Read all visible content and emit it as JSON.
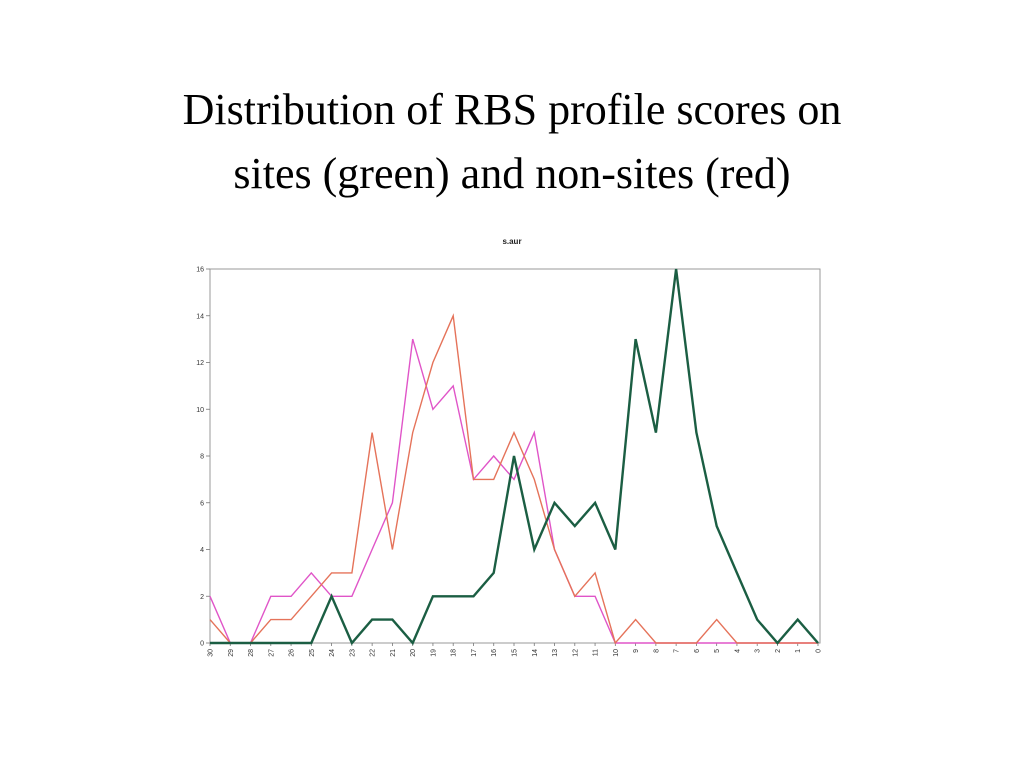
{
  "slide": {
    "title_line1": "Distribution of RBS profile scores on",
    "title_line2": "sites (green) and non-sites (red)"
  },
  "chart_data": {
    "type": "line",
    "title": "s.aur",
    "xlabel": "",
    "ylabel": "",
    "x": [
      30,
      29,
      28,
      27,
      26,
      25,
      24,
      23,
      22,
      21,
      20,
      19,
      18,
      17,
      16,
      15,
      14,
      13,
      12,
      11,
      10,
      9,
      8,
      7,
      6,
      5,
      4,
      3,
      2,
      1,
      0
    ],
    "ylim": [
      0,
      16
    ],
    "yticks": [
      0,
      2,
      4,
      6,
      8,
      10,
      12,
      14,
      16
    ],
    "grid": false,
    "series": [
      {
        "color": "#1b5e43",
        "values": [
          0,
          0,
          0,
          0,
          0,
          0,
          2,
          0,
          1,
          1,
          0,
          2,
          2,
          2,
          3,
          8,
          4,
          6,
          5,
          6,
          4,
          13,
          9,
          16,
          9,
          5,
          3,
          1,
          0,
          1,
          0
        ]
      },
      {
        "color": "#e5735a",
        "values": [
          1,
          0,
          0,
          1,
          1,
          2,
          3,
          3,
          9,
          4,
          9,
          12,
          14,
          7,
          7,
          9,
          7,
          4,
          2,
          3,
          0,
          1,
          0,
          0,
          0,
          1,
          0,
          0,
          0,
          0,
          0
        ]
      },
      {
        "color": "#e055c8",
        "values": [
          2,
          0,
          0,
          2,
          2,
          3,
          2,
          2,
          4,
          6,
          13,
          10,
          11,
          7,
          8,
          7,
          9,
          4,
          2,
          2,
          0,
          0,
          0,
          0,
          0,
          0,
          0,
          0,
          0,
          0,
          0
        ]
      }
    ]
  }
}
